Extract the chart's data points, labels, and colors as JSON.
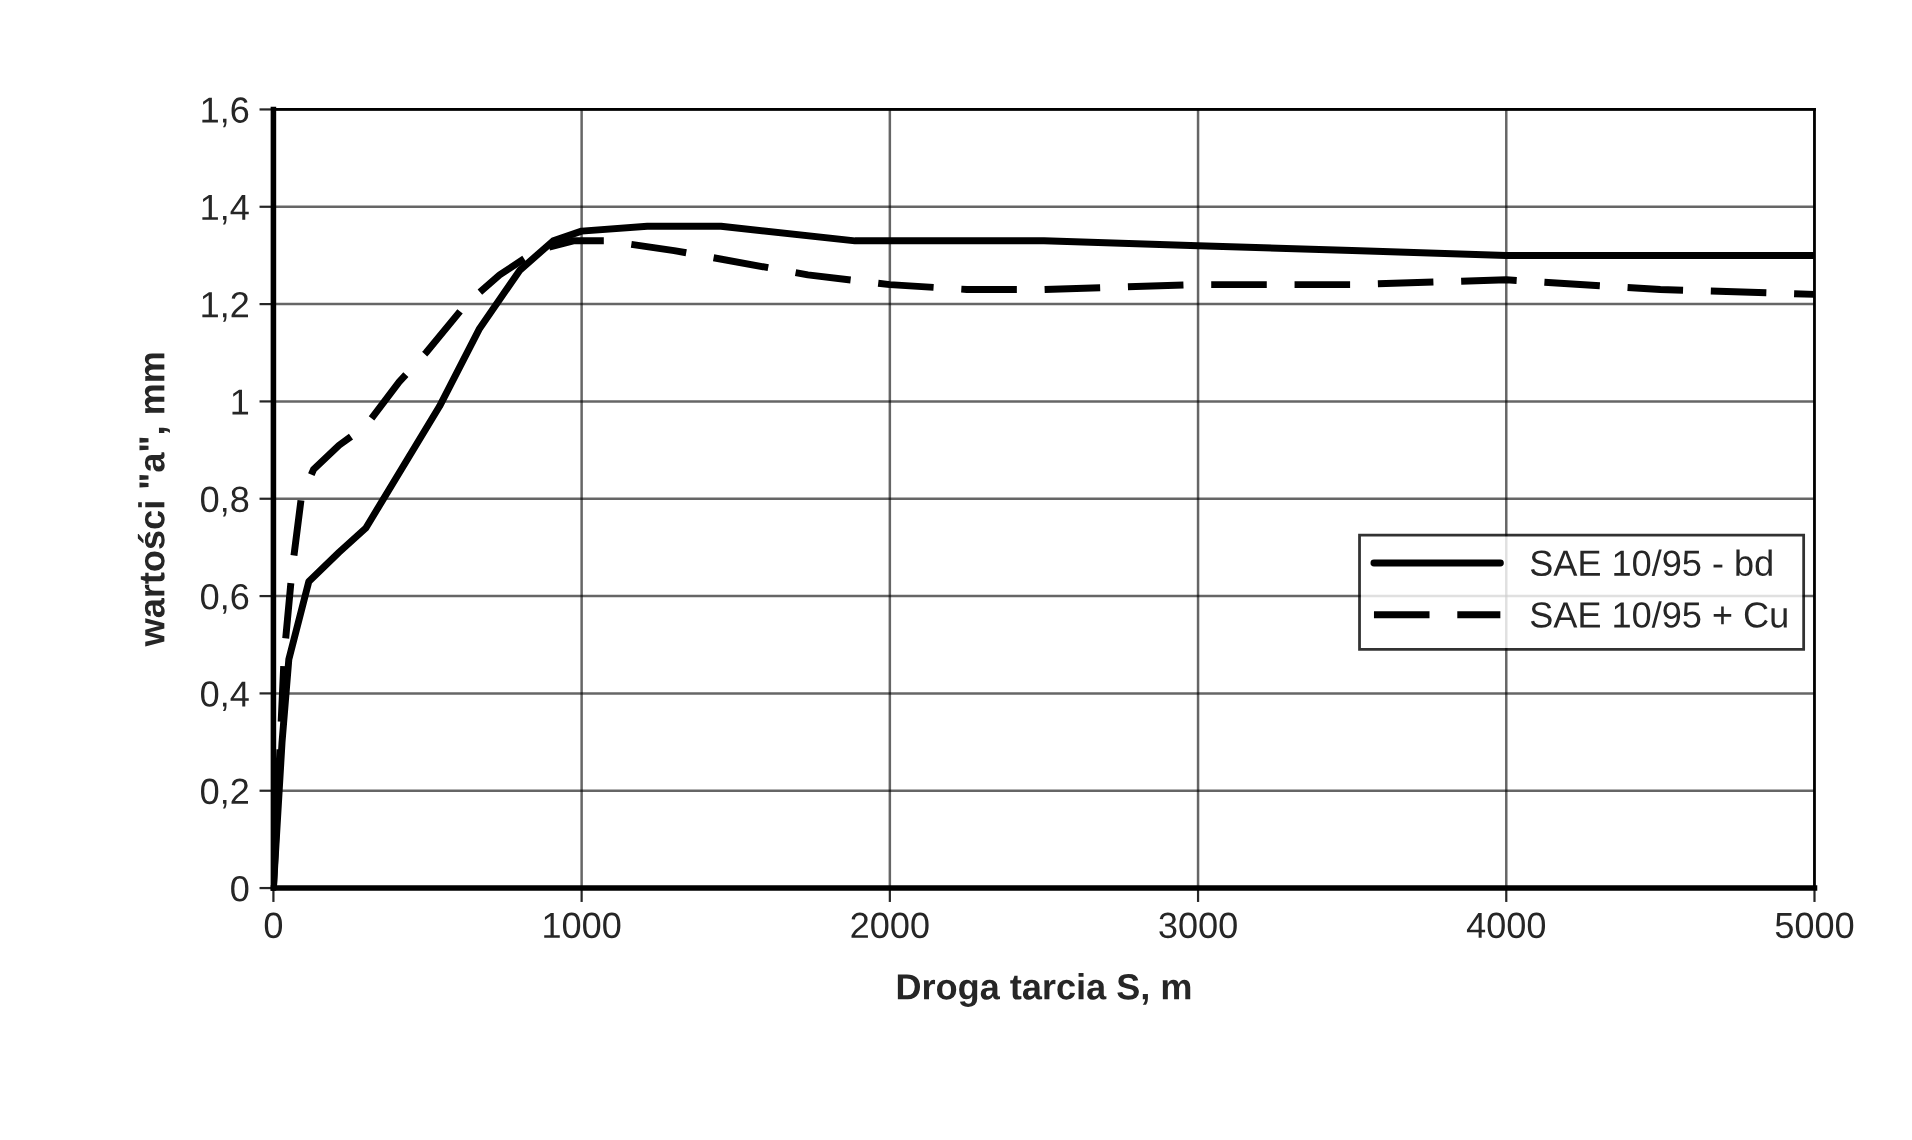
{
  "chart_data": {
    "type": "line",
    "xlabel": "Droga tarcia S, m",
    "ylabel": "wartości \"a\", mm",
    "xlim": [
      0,
      5000
    ],
    "xticks": [
      0,
      1000,
      2000,
      3000,
      4000,
      5000
    ],
    "ylim": [
      0,
      1.6
    ],
    "yticks": [
      0,
      {
        "value": 0.2,
        "label": "0,2"
      },
      {
        "value": 0.4,
        "label": "0,4"
      },
      {
        "value": 0.6,
        "label": "0,6"
      },
      {
        "value": 0.8,
        "label": "0,8"
      },
      1,
      {
        "value": 1.2,
        "label": "1,2"
      },
      {
        "value": 1.4,
        "label": "1,4"
      },
      {
        "value": 1.6,
        "label": "1,6"
      }
    ],
    "grid": true,
    "legend": "right",
    "series": [
      {
        "name": "SAE 10/95 - bd",
        "color": "#000000",
        "line_style": "solid",
        "x": [
          0,
          28,
          50,
          115,
          213,
          300,
          539,
          669,
          800,
          908,
          1000,
          1213,
          1452,
          1887,
          2000,
          2500,
          3000,
          3500,
          4000,
          5000
        ],
        "values": [
          0,
          0.3,
          0.47,
          0.63,
          0.69,
          0.74,
          0.99,
          1.15,
          1.27,
          1.33,
          1.35,
          1.36,
          1.36,
          1.33,
          1.33,
          1.33,
          1.32,
          1.31,
          1.3,
          1.3
        ]
      },
      {
        "name": "SAE 10/95 + Cu",
        "color": "#000000",
        "line_style": "dashed",
        "x": [
          0,
          15,
          35,
          60,
          90,
          130,
          213,
          300,
          408,
          495,
          625,
          734,
          854,
          973,
          1082,
          1300,
          1734,
          2000,
          2250,
          2500,
          3000,
          3500,
          4000,
          4500,
          5000
        ],
        "values": [
          0,
          0.2,
          0.48,
          0.65,
          0.8,
          0.86,
          0.91,
          0.95,
          1.04,
          1.1,
          1.2,
          1.26,
          1.31,
          1.33,
          1.33,
          1.31,
          1.26,
          1.24,
          1.23,
          1.23,
          1.24,
          1.24,
          1.25,
          1.23,
          1.22
        ]
      }
    ]
  }
}
